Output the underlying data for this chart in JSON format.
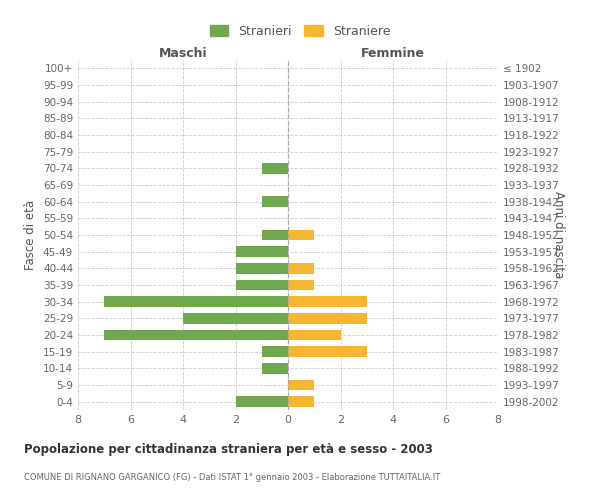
{
  "age_groups": [
    "100+",
    "95-99",
    "90-94",
    "85-89",
    "80-84",
    "75-79",
    "70-74",
    "65-69",
    "60-64",
    "55-59",
    "50-54",
    "45-49",
    "40-44",
    "35-39",
    "30-34",
    "25-29",
    "20-24",
    "15-19",
    "10-14",
    "5-9",
    "0-4"
  ],
  "birth_years": [
    "≤ 1902",
    "1903-1907",
    "1908-1912",
    "1913-1917",
    "1918-1922",
    "1923-1927",
    "1928-1932",
    "1933-1937",
    "1938-1942",
    "1943-1947",
    "1948-1952",
    "1953-1957",
    "1958-1962",
    "1963-1967",
    "1968-1972",
    "1973-1977",
    "1978-1982",
    "1983-1987",
    "1988-1992",
    "1993-1997",
    "1998-2002"
  ],
  "maschi": [
    0,
    0,
    0,
    0,
    0,
    0,
    1,
    0,
    1,
    0,
    1,
    2,
    2,
    2,
    7,
    4,
    7,
    1,
    1,
    0,
    2
  ],
  "femmine": [
    0,
    0,
    0,
    0,
    0,
    0,
    0,
    0,
    0,
    0,
    1,
    0,
    1,
    1,
    3,
    3,
    2,
    3,
    0,
    1,
    1
  ],
  "maschi_color": "#6fa84f",
  "femmine_color": "#f5b731",
  "title": "Popolazione per cittadinanza straniera per età e sesso - 2003",
  "subtitle": "COMUNE DI RIGNANO GARGANICO (FG) - Dati ISTAT 1° gennaio 2003 - Elaborazione TUTTAITALIA.IT",
  "xlabel_left": "Maschi",
  "xlabel_right": "Femmine",
  "ylabel_left": "Fasce di età",
  "ylabel_right": "Anni di nascita",
  "xlim": 8,
  "legend_stranieri": "Stranieri",
  "legend_straniere": "Straniere",
  "bg_color": "#ffffff",
  "grid_color": "#cccccc"
}
